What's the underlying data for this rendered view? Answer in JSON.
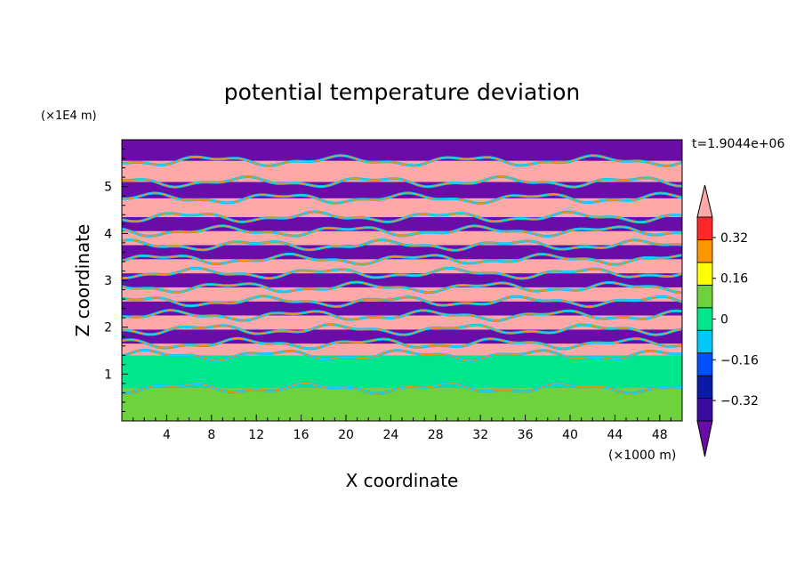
{
  "chart_data": {
    "type": "heatmap",
    "title": "potential temperature deviation",
    "xlabel": "X coordinate",
    "ylabel": "Z coordinate",
    "x_unit_label": "(×1000 m)",
    "y_unit_label": "(×1E4 m)",
    "time_label": "t=1.9044e+06",
    "xlim": [
      0,
      50
    ],
    "ylim": [
      0,
      6
    ],
    "x_ticks": [
      4,
      8,
      12,
      16,
      20,
      24,
      28,
      32,
      36,
      40,
      44,
      48
    ],
    "y_ticks": [
      1,
      2,
      3,
      4,
      5
    ],
    "colorbar": {
      "levels": [
        -0.4,
        -0.32,
        -0.24,
        -0.16,
        -0.08,
        0,
        0.08,
        0.16,
        0.24,
        0.32,
        0.4
      ],
      "tick_labels": [
        "0.32",
        "0.16",
        "0",
        "−0.16",
        "−0.32"
      ],
      "tick_values": [
        0.32,
        0.16,
        0,
        -0.16,
        -0.32
      ],
      "colors": [
        "#6a0da8",
        "#3b0aa0",
        "#0a1aa8",
        "#0050ff",
        "#00c8ff",
        "#00e68a",
        "#6ed23c",
        "#ffff00",
        "#ff9600",
        "#ff2828",
        "#ffa8a8"
      ]
    },
    "bands": [
      {
        "z": [
          0.0,
          0.7
        ],
        "level": 0.08
      },
      {
        "z": [
          0.7,
          1.4
        ],
        "level": 0.0
      },
      {
        "z": [
          1.4,
          1.65
        ],
        "level": 0.4
      },
      {
        "z": [
          1.65,
          1.95
        ],
        "level": -0.4
      },
      {
        "z": [
          1.95,
          2.25
        ],
        "level": 0.4
      },
      {
        "z": [
          2.25,
          2.55
        ],
        "level": -0.4
      },
      {
        "z": [
          2.55,
          2.85
        ],
        "level": 0.4
      },
      {
        "z": [
          2.85,
          3.15
        ],
        "level": -0.4
      },
      {
        "z": [
          3.15,
          3.45
        ],
        "level": 0.4
      },
      {
        "z": [
          3.45,
          3.75
        ],
        "level": -0.4
      },
      {
        "z": [
          3.75,
          4.05
        ],
        "level": 0.4
      },
      {
        "z": [
          4.05,
          4.35
        ],
        "level": -0.4
      },
      {
        "z": [
          4.35,
          4.75
        ],
        "level": 0.4
      },
      {
        "z": [
          4.75,
          5.1
        ],
        "level": -0.4
      },
      {
        "z": [
          5.1,
          5.55
        ],
        "level": 0.4
      },
      {
        "z": [
          5.55,
          6.0
        ],
        "level": -0.4
      }
    ]
  }
}
